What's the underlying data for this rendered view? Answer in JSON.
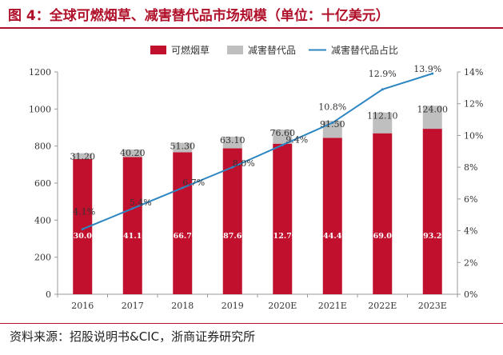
{
  "figure": {
    "title": "图 4：全球可燃烟草、减害替代品市场规模（单位：十亿美元）",
    "source": "资料来源：招股说明书&CIC，浙商证券研究所"
  },
  "colors": {
    "combustible": "#c0102e",
    "reduced_risk": "#bfbfbf",
    "share_line": "#2e86c1",
    "title": "#b0102a"
  },
  "chart_data": {
    "type": "bar",
    "stacked": true,
    "categories": [
      "2016",
      "2017",
      "2018",
      "2019",
      "2020E",
      "2021E",
      "2022E",
      "2023E"
    ],
    "series": [
      {
        "name": "可燃烟草",
        "values": [
          730.0,
          741.1,
          766.7,
          787.6,
          812.7,
          844.4,
          869.0,
          893.2
        ],
        "labels": [
          "730.00",
          "741.10",
          "766.70",
          "787.60",
          "812.70",
          "844.40",
          "869.00",
          "893.20"
        ],
        "type": "bar",
        "axis": "left"
      },
      {
        "name": "减害替代品",
        "values": [
          31.2,
          40.2,
          51.3,
          63.1,
          76.6,
          91.5,
          112.1,
          124.0
        ],
        "labels": [
          "31.20",
          "40.20",
          "51.30",
          "63.10",
          "76.60",
          "91.50",
          "112.10",
          "124.00"
        ],
        "type": "bar",
        "axis": "left"
      },
      {
        "name": "减害替代品占比",
        "values": [
          4.1,
          5.4,
          6.7,
          8.0,
          9.4,
          10.8,
          12.9,
          13.9
        ],
        "labels": [
          "4.1%",
          "5.4%",
          "6.7%",
          "8.0%",
          "9.4%",
          "10.8%",
          "12.9%",
          "13.9%"
        ],
        "type": "line",
        "axis": "right"
      }
    ],
    "y_left": {
      "min": 0,
      "max": 1200,
      "ticks": [
        "0",
        "200",
        "400",
        "600",
        "800",
        "1000",
        "1200"
      ],
      "tick_values": [
        0,
        200,
        400,
        600,
        800,
        1000,
        1200
      ]
    },
    "y_right": {
      "min": 0,
      "max": 14,
      "ticks": [
        "0%",
        "2%",
        "4%",
        "6%",
        "8%",
        "10%",
        "12%",
        "14%"
      ],
      "tick_values": [
        0,
        2,
        4,
        6,
        8,
        10,
        12,
        14
      ]
    },
    "legend_position": "top",
    "grid": false
  }
}
